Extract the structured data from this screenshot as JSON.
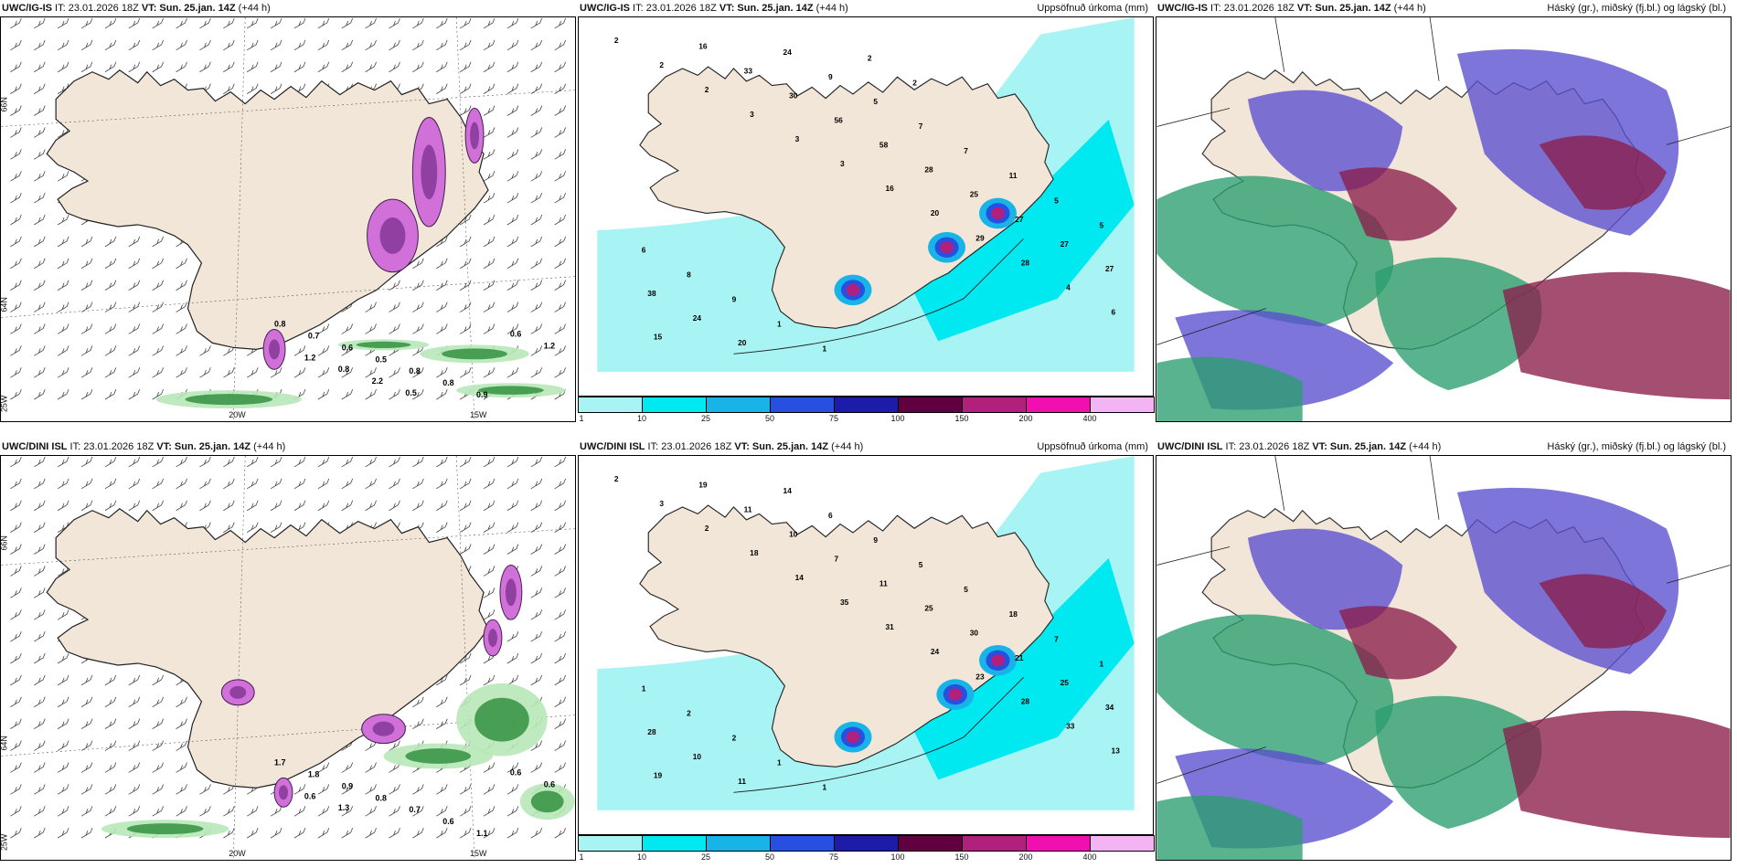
{
  "panels": [
    {
      "title_model": "UWC/IG-IS",
      "title_it": " IT: 23.01.2026 18Z ",
      "title_vt": "VT: Sun. 25.jan. 14Z",
      "title_lead": " (+44 h)",
      "right_title": ""
    },
    {
      "title_model": "UWC/IG-IS",
      "title_it": " IT: 23.01.2026 18Z ",
      "title_vt": "VT: Sun. 25.jan. 14Z",
      "title_lead": " (+44 h)",
      "right_title": "Uppsöfnuð úrkoma (mm)"
    },
    {
      "title_model": "UWC/IG-IS",
      "title_it": " IT: 23.01.2026 18Z ",
      "title_vt": "VT: Sun. 25.jan. 14Z",
      "title_lead": " (+44 h)",
      "right_title": "Háský (gr.), miðský (fj.bl.) og lágský (bl.)"
    },
    {
      "title_model": "UWC/DINI ISL",
      "title_it": " IT: 23.01.2026 18Z ",
      "title_vt": "VT: Sun. 25.jan. 14Z",
      "title_lead": " (+44 h)",
      "right_title": ""
    },
    {
      "title_model": "UWC/DINI ISL",
      "title_it": " IT: 23.01.2026 18Z ",
      "title_vt": "VT: Sun. 25.jan. 14Z",
      "title_lead": " (+44 h)",
      "right_title": "Uppsöfnuð úrkoma (mm)"
    },
    {
      "title_model": "UWC/DINI ISL",
      "title_it": " IT: 23.01.2026 18Z ",
      "title_vt": "VT: Sun. 25.jan. 14Z",
      "title_lead": " (+44 h)",
      "right_title": "Háský (gr.), miðský (fj.bl.) og lágský (bl.)"
    }
  ],
  "axis_labels": {
    "lat66": "66N",
    "lat64": "64N",
    "lon25": "25W",
    "lon20": "20W",
    "lon15": "15W"
  },
  "colorbar": {
    "ticks": [
      "1",
      "10",
      "25",
      "50",
      "75",
      "100",
      "150",
      "200",
      "400"
    ],
    "colors": [
      "#a8f4f4",
      "#00e8f0",
      "#18b4e8",
      "#2850e0",
      "#1c1ca8",
      "#600040",
      "#b0207c",
      "#f010b0",
      "#f4b4f4"
    ]
  },
  "precip_labels_top": [
    "2",
    "2",
    "2",
    "3",
    "3",
    "3",
    "16",
    "20",
    "29",
    "28",
    "4",
    "6",
    "15",
    "16",
    "33",
    "30",
    "56",
    "58",
    "28",
    "25",
    "27",
    "27",
    "27",
    "38",
    "24",
    "20",
    "24",
    "9",
    "5",
    "7",
    "7",
    "11",
    "5",
    "5",
    "6",
    "8",
    "9",
    "1",
    "1",
    "2",
    "2"
  ],
  "precip_labels_bottom": [
    "2",
    "3",
    "2",
    "18",
    "14",
    "35",
    "31",
    "24",
    "23",
    "28",
    "33",
    "13",
    "19",
    "19",
    "11",
    "10",
    "7",
    "11",
    "25",
    "30",
    "21",
    "25",
    "34",
    "28",
    "10",
    "11",
    "14",
    "6",
    "9",
    "5",
    "5",
    "18",
    "7",
    "1",
    "1",
    "2",
    "2",
    "1",
    "1"
  ],
  "wind_labels_top": [
    "0.8",
    "0.7",
    "0.6",
    "0.5",
    "0.8",
    "0.8",
    "0.9",
    "0.6",
    "1.2",
    "1.2",
    "0.8",
    "2.2",
    "0.5"
  ],
  "wind_labels_bottom": [
    "1.7",
    "1.8",
    "0.9",
    "0.8",
    "0.7",
    "0.6",
    "1.1",
    "0.6",
    "0.6",
    "0.6",
    "1.3"
  ],
  "colors": {
    "land": "#f2e6d8",
    "sea": "#ffffff",
    "coast": "#222222"
  }
}
